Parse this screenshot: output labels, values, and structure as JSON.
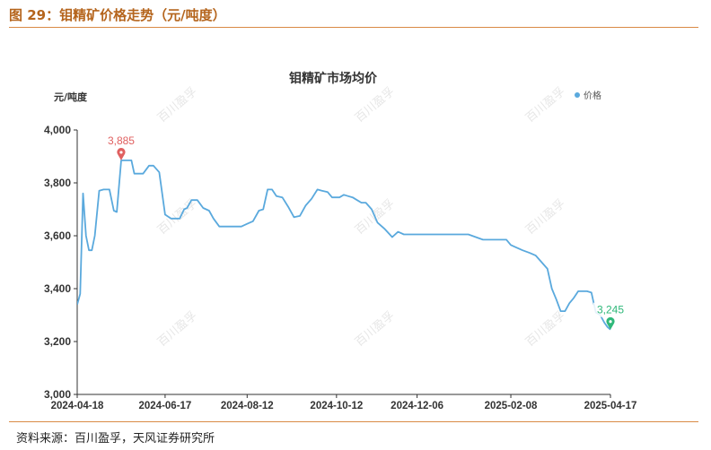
{
  "figure_title": "图 29：钼精矿价格走势（元/吨度）",
  "source_note": "资料来源：百川盈孚，天风证券研究所",
  "watermark": "百川盈孚",
  "chart_data": {
    "type": "line",
    "title": "钼精矿市场均价",
    "ylabel": "元/吨度",
    "ylim": [
      3000,
      4000
    ],
    "yticks": [
      3000,
      3200,
      3400,
      3600,
      3800,
      4000
    ],
    "ytick_labels": [
      "3,000",
      "3,200",
      "3,400",
      "3,600",
      "3,800",
      "4,000"
    ],
    "xtick_labels": [
      "2024-04-18",
      "2024-06-17",
      "2024-08-12",
      "2024-10-12",
      "2024-12-06",
      "2025-02-08",
      "2025-04-17"
    ],
    "legend_position": "top-right",
    "grid": false,
    "series": [
      {
        "name": "价格",
        "color": "#5aa9dd",
        "x": [
          "2024-04-18",
          "2024-04-20",
          "2024-04-22",
          "2024-04-24",
          "2024-04-26",
          "2024-04-28",
          "2024-04-30",
          "2024-05-03",
          "2024-05-06",
          "2024-05-08",
          "2024-05-10",
          "2024-05-13",
          "2024-05-15",
          "2024-05-18",
          "2024-05-21",
          "2024-05-23",
          "2024-05-25",
          "2024-05-27",
          "2024-05-29",
          "2024-06-02",
          "2024-06-06",
          "2024-06-09",
          "2024-06-13",
          "2024-06-17",
          "2024-06-21",
          "2024-06-24",
          "2024-06-27",
          "2024-06-30",
          "2024-07-02",
          "2024-07-05",
          "2024-07-09",
          "2024-07-13",
          "2024-07-17",
          "2024-07-20",
          "2024-07-24",
          "2024-07-28",
          "2024-08-01",
          "2024-08-04",
          "2024-08-08",
          "2024-08-12",
          "2024-08-16",
          "2024-08-20",
          "2024-08-23",
          "2024-08-26",
          "2024-08-29",
          "2024-09-01",
          "2024-09-05",
          "2024-09-09",
          "2024-09-13",
          "2024-09-17",
          "2024-09-21",
          "2024-09-25",
          "2024-09-29",
          "2024-10-02",
          "2024-10-06",
          "2024-10-09",
          "2024-10-12",
          "2024-10-14",
          "2024-10-17",
          "2024-10-20",
          "2024-10-23",
          "2024-10-26",
          "2024-10-29",
          "2024-11-01",
          "2024-11-05",
          "2024-11-09",
          "2024-11-14",
          "2024-11-19",
          "2024-11-23",
          "2024-11-27",
          "2024-12-01",
          "2024-12-03",
          "2024-12-06",
          "2024-12-10",
          "2024-12-15",
          "2024-12-20",
          "2025-01-01",
          "2025-01-10",
          "2025-01-20",
          "2025-01-28",
          "2025-02-02",
          "2025-02-05",
          "2025-02-08",
          "2025-02-12",
          "2025-02-16",
          "2025-02-21",
          "2025-02-25",
          "2025-03-01",
          "2025-03-05",
          "2025-03-08",
          "2025-03-11",
          "2025-03-14",
          "2025-03-17",
          "2025-03-20",
          "2025-03-23",
          "2025-03-26",
          "2025-03-29",
          "2025-04-01",
          "2025-04-04",
          "2025-04-07",
          "2025-04-10",
          "2025-04-13",
          "2025-04-15",
          "2025-04-17"
        ],
        "values": [
          3340,
          3380,
          3760,
          3600,
          3545,
          3545,
          3600,
          3770,
          3775,
          3775,
          3775,
          3695,
          3690,
          3885,
          3885,
          3885,
          3885,
          3835,
          3835,
          3835,
          3865,
          3865,
          3840,
          3680,
          3665,
          3665,
          3665,
          3700,
          3705,
          3735,
          3735,
          3705,
          3695,
          3665,
          3635,
          3635,
          3635,
          3635,
          3635,
          3645,
          3655,
          3695,
          3700,
          3775,
          3775,
          3750,
          3745,
          3710,
          3670,
          3675,
          3715,
          3740,
          3775,
          3770,
          3765,
          3745,
          3745,
          3745,
          3755,
          3750,
          3745,
          3735,
          3725,
          3725,
          3700,
          3650,
          3625,
          3595,
          3615,
          3605,
          3605,
          3605,
          3605,
          3605,
          3605,
          3605,
          3605,
          3605,
          3585,
          3585,
          3585,
          3585,
          3565,
          3555,
          3545,
          3535,
          3525,
          3500,
          3475,
          3400,
          3360,
          3315,
          3315,
          3345,
          3365,
          3390,
          3390,
          3390,
          3385,
          3310,
          3300,
          3270,
          3255,
          3245
        ]
      }
    ],
    "annotations": [
      {
        "label": "3,885",
        "x": "2024-05-18",
        "y": 3885,
        "type": "max",
        "color": "#e06060"
      },
      {
        "label": "3,245",
        "x": "2025-04-17",
        "y": 3245,
        "type": "min",
        "color": "#2fb87a"
      }
    ]
  }
}
